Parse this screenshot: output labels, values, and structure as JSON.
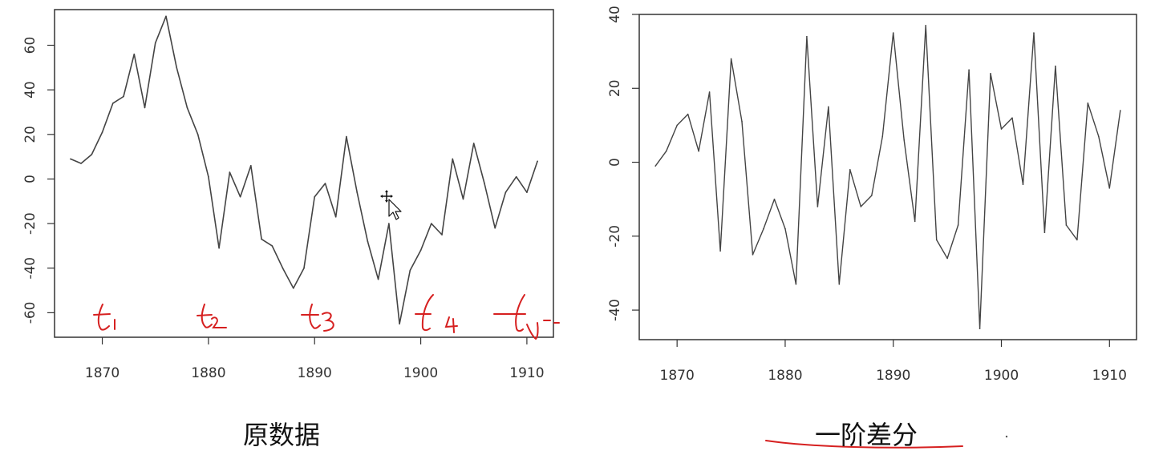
{
  "captions": {
    "left": "原数据",
    "right": "一阶差分"
  },
  "annotations": {
    "left_marks": [
      "t1",
      "t2",
      "t3",
      "t4",
      "tn"
    ],
    "color": "#d62020"
  },
  "chart_data": [
    {
      "type": "line",
      "x": [
        1867,
        1868,
        1869,
        1870,
        1871,
        1872,
        1873,
        1874,
        1875,
        1876,
        1877,
        1878,
        1879,
        1880,
        1881,
        1882,
        1883,
        1884,
        1885,
        1886,
        1887,
        1888,
        1889,
        1890,
        1891,
        1892,
        1893,
        1894,
        1895,
        1896,
        1897,
        1898,
        1899,
        1900,
        1901,
        1902,
        1903,
        1904,
        1905,
        1906,
        1907,
        1908,
        1909,
        1910,
        1911
      ],
      "series": [
        {
          "values": [
            9,
            7,
            11,
            21,
            34,
            37,
            56,
            32,
            61,
            73,
            50,
            32,
            20,
            1,
            -31,
            3,
            -8,
            6,
            -27,
            -30,
            -40,
            -49,
            -40,
            -8,
            -2,
            -17,
            19,
            -6,
            -28,
            -45,
            -20,
            -65,
            -41,
            -32,
            -20,
            -25,
            9,
            -9,
            16,
            -2,
            -22,
            -6,
            1,
            -6,
            8
          ]
        }
      ],
      "xlim": [
        1865.5,
        1912.5
      ],
      "ylim": [
        -71,
        76
      ],
      "xticks": [
        1870,
        1880,
        1890,
        1900,
        1910
      ],
      "yticks": [
        60,
        40,
        20,
        0,
        -20,
        -40,
        -60
      ],
      "xtick_labels": [
        "1870",
        "1880",
        "1890",
        "1900",
        "1910"
      ],
      "ytick_labels": [
        "60",
        "40",
        "20",
        "0",
        "-20",
        "-40",
        "-60"
      ],
      "line_color": "#444444"
    },
    {
      "type": "line",
      "x": [
        1868,
        1869,
        1870,
        1871,
        1872,
        1873,
        1874,
        1875,
        1876,
        1877,
        1878,
        1879,
        1880,
        1881,
        1882,
        1883,
        1884,
        1885,
        1886,
        1887,
        1888,
        1889,
        1890,
        1891,
        1892,
        1893,
        1894,
        1895,
        1896,
        1897,
        1898,
        1899,
        1900,
        1901,
        1902,
        1903,
        1904,
        1905,
        1906,
        1907,
        1908,
        1909,
        1910,
        1911
      ],
      "series": [
        {
          "values": [
            -1,
            3,
            10,
            13,
            3,
            19,
            -24,
            28,
            11,
            -25,
            -18,
            -10,
            -18,
            -33,
            34,
            -12,
            15,
            -33,
            -2,
            -12,
            -9,
            7,
            35,
            6,
            -16,
            37,
            -21,
            -26,
            -17,
            25,
            -45,
            24,
            9,
            12,
            -6,
            35,
            -19,
            26,
            -17,
            -21,
            16,
            7,
            -7,
            14
          ]
        }
      ],
      "xlim": [
        1866.5,
        1912.5
      ],
      "ylim": [
        -48,
        40
      ],
      "xticks": [
        1870,
        1880,
        1890,
        1900,
        1910
      ],
      "yticks": [
        40,
        20,
        0,
        -20,
        -40
      ],
      "xtick_labels": [
        "1870",
        "1880",
        "1890",
        "1900",
        "1910"
      ],
      "ytick_labels": [
        "40",
        "20",
        "0",
        "-20",
        "-40"
      ],
      "line_color": "#444444"
    }
  ]
}
